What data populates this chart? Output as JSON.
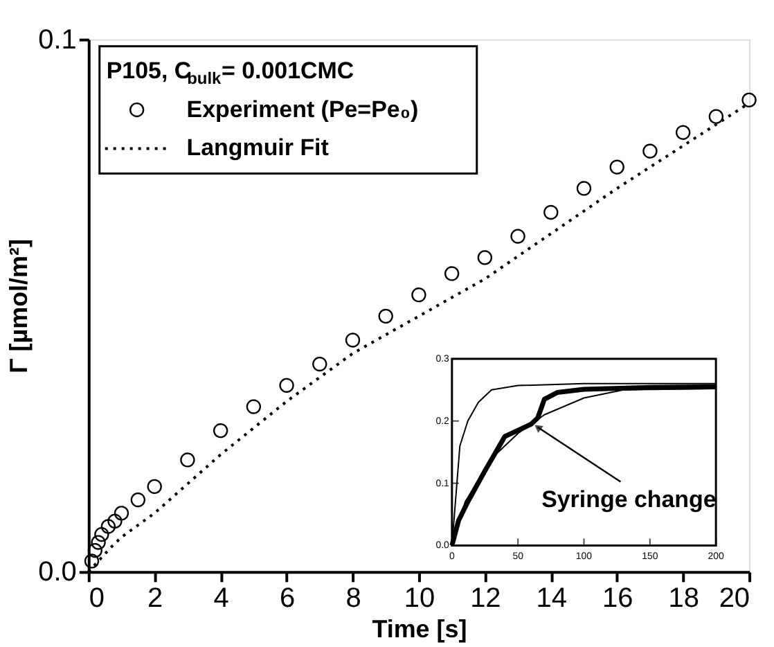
{
  "chart_data": [
    {
      "type": "scatter",
      "xlabel": "Time [s]",
      "ylabel": "Γ [µmol/m²]",
      "legend_title": "P105, C$_{bulk}$= 0.001CMC",
      "legend": "top left",
      "xlim": [
        0,
        20
      ],
      "ylim": [
        0,
        0.1
      ],
      "xticks": [
        0,
        2,
        4,
        6,
        8,
        10,
        12,
        14,
        16,
        18,
        20
      ],
      "yticks": [
        {
          "value": 0,
          "label": "0.0"
        },
        {
          "value": 0.1,
          "label": "0.1"
        }
      ],
      "grid": false,
      "series": [
        {
          "name": "Experiment (Pe=Pe₀)",
          "type": "scatter",
          "marker": "circle",
          "color": "#000000",
          "x": [
            0.1,
            0.2,
            0.3,
            0.4,
            0.6,
            0.8,
            1,
            1.5,
            2,
            3,
            4,
            5,
            6,
            7,
            8,
            9,
            10,
            11,
            12,
            13,
            14,
            15,
            16,
            17,
            18,
            19,
            20
          ],
          "values": [
            0.002,
            0.004,
            0.0055,
            0.007,
            0.0085,
            0.0095,
            0.011,
            0.0135,
            0.016,
            0.021,
            0.0265,
            0.031,
            0.035,
            0.039,
            0.0435,
            0.048,
            0.052,
            0.056,
            0.059,
            0.063,
            0.0675,
            0.072,
            0.076,
            0.079,
            0.0825,
            0.0855,
            0.0886
          ]
        },
        {
          "name": "Langmuir Fit",
          "type": "line",
          "line_style": "dotted",
          "color": "#000000",
          "x": [
            0,
            0.7,
            1,
            2,
            4,
            6,
            8,
            10,
            12,
            14,
            16,
            18,
            20
          ],
          "values": [
            0,
            0.0047,
            0.0065,
            0.011,
            0.022,
            0.032,
            0.041,
            0.048,
            0.055,
            0.0635,
            0.072,
            0.08,
            0.088
          ]
        }
      ]
    },
    {
      "type": "line",
      "xlim": [
        0,
        200
      ],
      "ylim": [
        0,
        0.3
      ],
      "xticks": [
        0,
        50,
        100,
        150,
        200
      ],
      "yticks": [
        {
          "value": 0,
          "label": "0.0"
        },
        {
          "value": 0.1,
          "label": "0.1"
        },
        {
          "value": 0.2,
          "label": "0.2"
        },
        {
          "value": 0.3,
          "label": "0.3"
        }
      ],
      "annotations": [
        {
          "text": "Syringe change",
          "x": 65,
          "y": 0.19
        }
      ],
      "series": [
        {
          "color": "#000000",
          "line_style": "solid",
          "x": [
            0,
            3,
            6,
            12,
            20,
            30,
            50,
            100,
            200
          ],
          "values": [
            0,
            0.08,
            0.16,
            0.2,
            0.23,
            0.25,
            0.257,
            0.26,
            0.26
          ]
        },
        {
          "color": "#000000",
          "line_style": "solid",
          "x": [
            0,
            5,
            12,
            25,
            40,
            60,
            65,
            70,
            80,
            100,
            150,
            200
          ],
          "values": [
            0,
            0.04,
            0.07,
            0.12,
            0.175,
            0.195,
            0.205,
            0.235,
            0.246,
            0.251,
            0.254,
            0.255
          ]
        },
        {
          "color": "#000000",
          "line_style": "solid",
          "x": [
            2,
            10,
            30,
            50,
            70,
            100,
            130,
            200
          ],
          "values": [
            0.015,
            0.07,
            0.14,
            0.18,
            0.21,
            0.237,
            0.25,
            0.252
          ]
        }
      ]
    }
  ]
}
